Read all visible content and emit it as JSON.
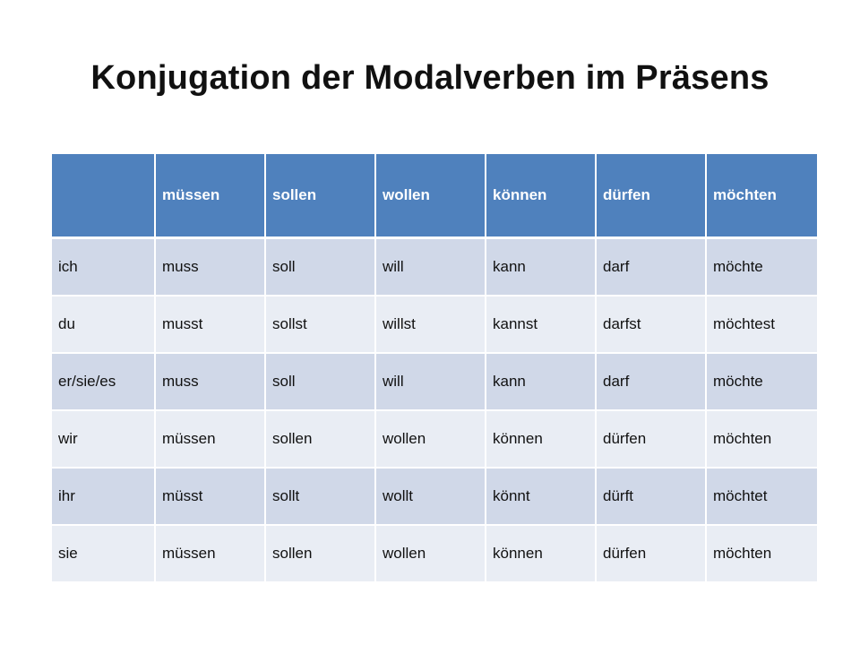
{
  "slide": {
    "title": "Konjugation der Modalverben im Präsens"
  },
  "table": {
    "headers": [
      "",
      "müssen",
      "sollen",
      "wollen",
      "können",
      "dürfen",
      "möchten"
    ],
    "rows": [
      [
        "ich",
        "muss",
        "soll",
        "will",
        "kann",
        "darf",
        "möchte"
      ],
      [
        "du",
        "musst",
        "sollst",
        "willst",
        "kannst",
        "darfst",
        "möchtest"
      ],
      [
        "er/sie/es",
        "muss",
        "soll",
        "will",
        "kann",
        "darf",
        "möchte"
      ],
      [
        "wir",
        "müssen",
        "sollen",
        "wollen",
        "können",
        "dürfen",
        "möchten"
      ],
      [
        "ihr",
        "müsst",
        "sollt",
        "wollt",
        "könnt",
        "dürft",
        "möchtet"
      ],
      [
        "sie",
        "müssen",
        "sollen",
        "wollen",
        "können",
        "dürfen",
        "möchten"
      ]
    ]
  },
  "colors": {
    "header_bg": "#4f81bd",
    "row_odd_bg": "#d0d8e8",
    "row_even_bg": "#e9edf4",
    "header_text": "#ffffff",
    "body_text": "#111111"
  }
}
